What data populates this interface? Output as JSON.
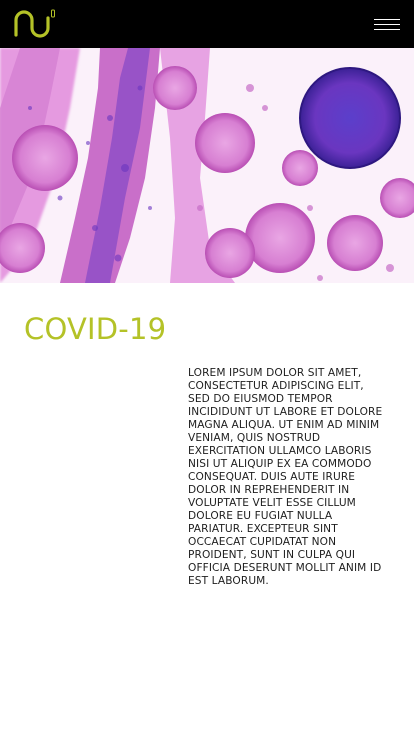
{
  "header": {
    "logo_icon": "wave-logo-icon",
    "menu_icon": "hamburger-menu-icon"
  },
  "hero": {
    "image": "magenta-virus-micrograph"
  },
  "main": {
    "title": "COVID-19",
    "body": "LOREM IPSUM DOLOR SIT AMET, CONSECTETUR ADIPISCING ELIT, SED DO EIUSMOD TEMPOR INCIDIDUNT UT LABORE ET DOLORE MAGNA ALIQUA. UT ENIM AD MINIM VENIAM, QUIS NOSTRUD EXERCITATION ULLAMCO LABORIS NISI UT ALIQUIP EX EA COMMODO CONSEQUAT. DUIS AUTE IRURE DOLOR IN REPREHENDERIT IN VOLUPTATE VELIT ESSE CILLUM DOLORE EU FUGIAT NULLA PARIATUR. EXCEPTEUR SINT OCCAECAT CUPIDATAT NON PROIDENT, SUNT IN CULPA QUI OFFICIA DESERUNT MOLLIT ANIM ID EST LABORUM."
  },
  "colors": {
    "accent": "#b4c227",
    "header_bg": "#000000",
    "text": "#1e1e1e"
  }
}
